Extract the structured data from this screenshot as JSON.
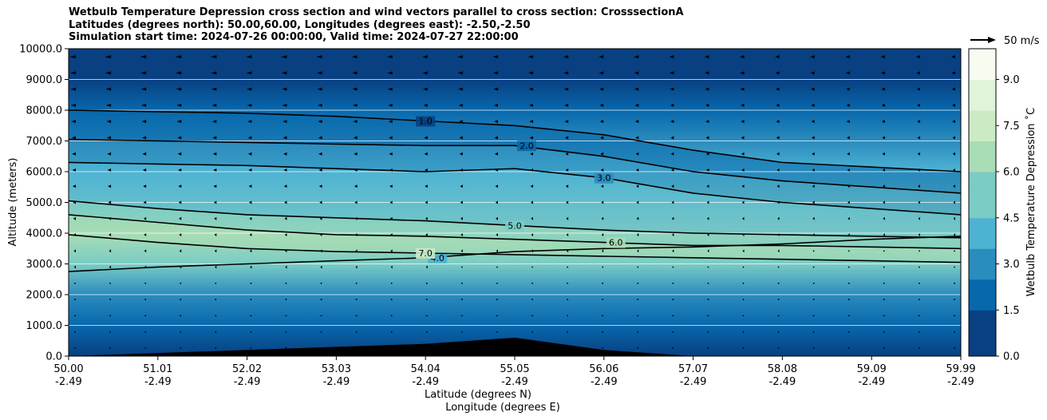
{
  "chart_data": {
    "type": "filled-contour",
    "title_lines": [
      "Wetbulb Temperature Depression cross section and wind vectors parallel to cross section: CrosssectionA",
      "Latitudes (degrees north): 50.00,60.00, Longitudes (degrees east): -2.50,-2.50",
      "Simulation start time: 2024-07-26 00:00:00, Valid time: 2024-07-27 22:00:00"
    ],
    "ylabel": "Altitude (meters)",
    "xlabel_lines": [
      "Latitude (degrees N)",
      "Longitude (degrees E)"
    ],
    "ylim": [
      0,
      10000
    ],
    "yticks": [
      "0.0",
      "1000.0",
      "2000.0",
      "3000.0",
      "4000.0",
      "5000.0",
      "6000.0",
      "7000.0",
      "8000.0",
      "9000.0",
      "10000.0"
    ],
    "xticks": [
      {
        "lat": "50.00",
        "lon": "-2.49"
      },
      {
        "lat": "51.01",
        "lon": "-2.49"
      },
      {
        "lat": "52.02",
        "lon": "-2.49"
      },
      {
        "lat": "53.03",
        "lon": "-2.49"
      },
      {
        "lat": "54.04",
        "lon": "-2.49"
      },
      {
        "lat": "55.05",
        "lon": "-2.49"
      },
      {
        "lat": "56.06",
        "lon": "-2.49"
      },
      {
        "lat": "57.07",
        "lon": "-2.49"
      },
      {
        "lat": "58.08",
        "lon": "-2.49"
      },
      {
        "lat": "59.09",
        "lon": "-2.49"
      },
      {
        "lat": "59.99",
        "lon": "-2.49"
      }
    ],
    "grid": "horizontal",
    "colorbar": {
      "label": "Wetbulb Temperature Depression ˚C",
      "ticks": [
        "0.0",
        "1.5",
        "3.0",
        "4.5",
        "6.0",
        "7.5",
        "9.0"
      ],
      "range": [
        0,
        10
      ],
      "colormap": "GnBu_r",
      "colors": [
        "#084081",
        "#0868ac",
        "#2b8cbe",
        "#4eb3d3",
        "#7bccc4",
        "#a8ddb5",
        "#ccebc5",
        "#e0f3db",
        "#f7fcf0"
      ]
    },
    "wind_reference": "50 m/s",
    "contour_levels": [
      {
        "value": 1.0,
        "label": "1.0",
        "altitude_by_lat": [
          8000,
          7950,
          7900,
          7800,
          7650,
          7500,
          7200,
          6700,
          6300,
          6150,
          6000
        ]
      },
      {
        "value": 2.0,
        "label": "2.0",
        "altitude_by_lat": [
          7050,
          7000,
          6950,
          6900,
          6850,
          6850,
          6500,
          6000,
          5700,
          5500,
          5300
        ]
      },
      {
        "value": 3.0,
        "label": "3.0",
        "altitude_by_lat": [
          6300,
          6250,
          6200,
          6100,
          6000,
          6100,
          5800,
          5300,
          5000,
          4800,
          4600
        ]
      },
      {
        "value": 4.0,
        "label": "4.0",
        "altitude_by_lat": [
          2750,
          2900,
          3000,
          3100,
          3200,
          3400,
          3500,
          3550,
          3650,
          3800,
          3900
        ]
      },
      {
        "value": 5.0,
        "label": "5.0",
        "altitude_by_lat": [
          5050,
          4800,
          4600,
          4500,
          4400,
          4250,
          4100,
          4000,
          3950,
          3900,
          3850
        ]
      },
      {
        "value": 6.0,
        "label": "6.0",
        "altitude_by_lat": [
          4600,
          4350,
          4100,
          3950,
          3900,
          3800,
          3700,
          3600,
          3600,
          3550,
          3500
        ]
      },
      {
        "value": 7.0,
        "label": "7.0",
        "altitude_by_lat": [
          3950,
          3700,
          3500,
          3400,
          3350,
          3300,
          3250,
          3200,
          3150,
          3100,
          3050
        ]
      }
    ],
    "dryness_by_altitude": [
      {
        "altitude": 0,
        "value": 1.0
      },
      {
        "altitude": 1000,
        "value": 1.6
      },
      {
        "altitude": 2000,
        "value": 3.2
      },
      {
        "altitude": 3000,
        "value": 4.8
      },
      {
        "altitude": 4000,
        "value": 6.5
      },
      {
        "altitude": 5000,
        "value": 5.2
      },
      {
        "altitude": 6000,
        "value": 3.6
      },
      {
        "altitude": 7000,
        "value": 2.4
      },
      {
        "altitude": 8000,
        "value": 1.4
      },
      {
        "altitude": 9000,
        "value": 0.9
      },
      {
        "altitude": 10000,
        "value": 0.7
      }
    ],
    "terrain_altitude_by_lat": [
      0,
      100,
      200,
      300,
      400,
      600,
      200,
      0,
      0,
      0,
      0
    ]
  }
}
